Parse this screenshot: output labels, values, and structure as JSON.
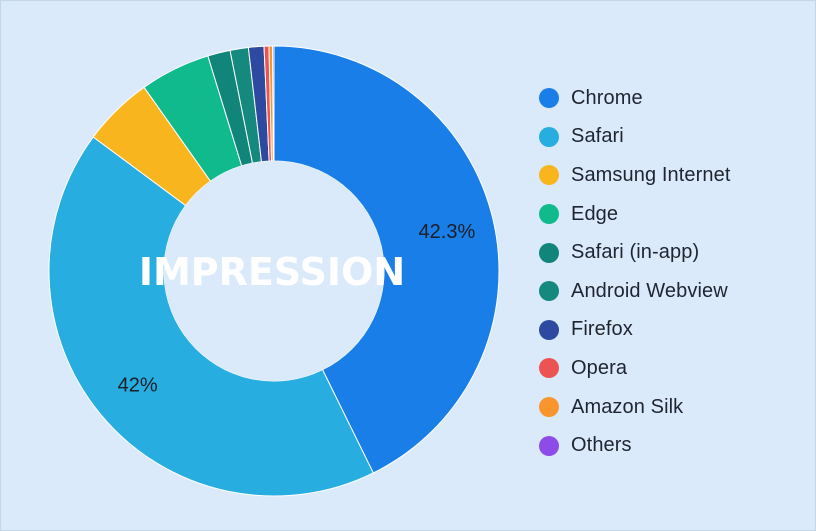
{
  "chart_data": {
    "type": "pie",
    "center_label": "IMPRESSION",
    "legend_position": "right",
    "slices": [
      {
        "name": "Chrome",
        "value": 42.3,
        "label": "42.3%",
        "color": "#1a7ee8"
      },
      {
        "name": "Safari",
        "value": 42.0,
        "label": "42%",
        "color": "#27ade0"
      },
      {
        "name": "Samsung Internet",
        "value": 5.0,
        "label": "",
        "color": "#f8b51d"
      },
      {
        "name": "Edge",
        "value": 5.0,
        "label": "",
        "color": "#10ba8d"
      },
      {
        "name": "Safari (in-app)",
        "value": 1.6,
        "label": "",
        "color": "#12857a"
      },
      {
        "name": "Android Webview",
        "value": 1.3,
        "label": "",
        "color": "#16897f"
      },
      {
        "name": "Firefox",
        "value": 1.1,
        "label": "",
        "color": "#2e4aa0"
      },
      {
        "name": "Opera",
        "value": 0.35,
        "label": "",
        "color": "#ec5454"
      },
      {
        "name": "Amazon Silk",
        "value": 0.25,
        "label": "",
        "color": "#f9952d"
      },
      {
        "name": "Others",
        "value": 0.1,
        "label": "",
        "color": "#8d4ce8"
      }
    ]
  }
}
